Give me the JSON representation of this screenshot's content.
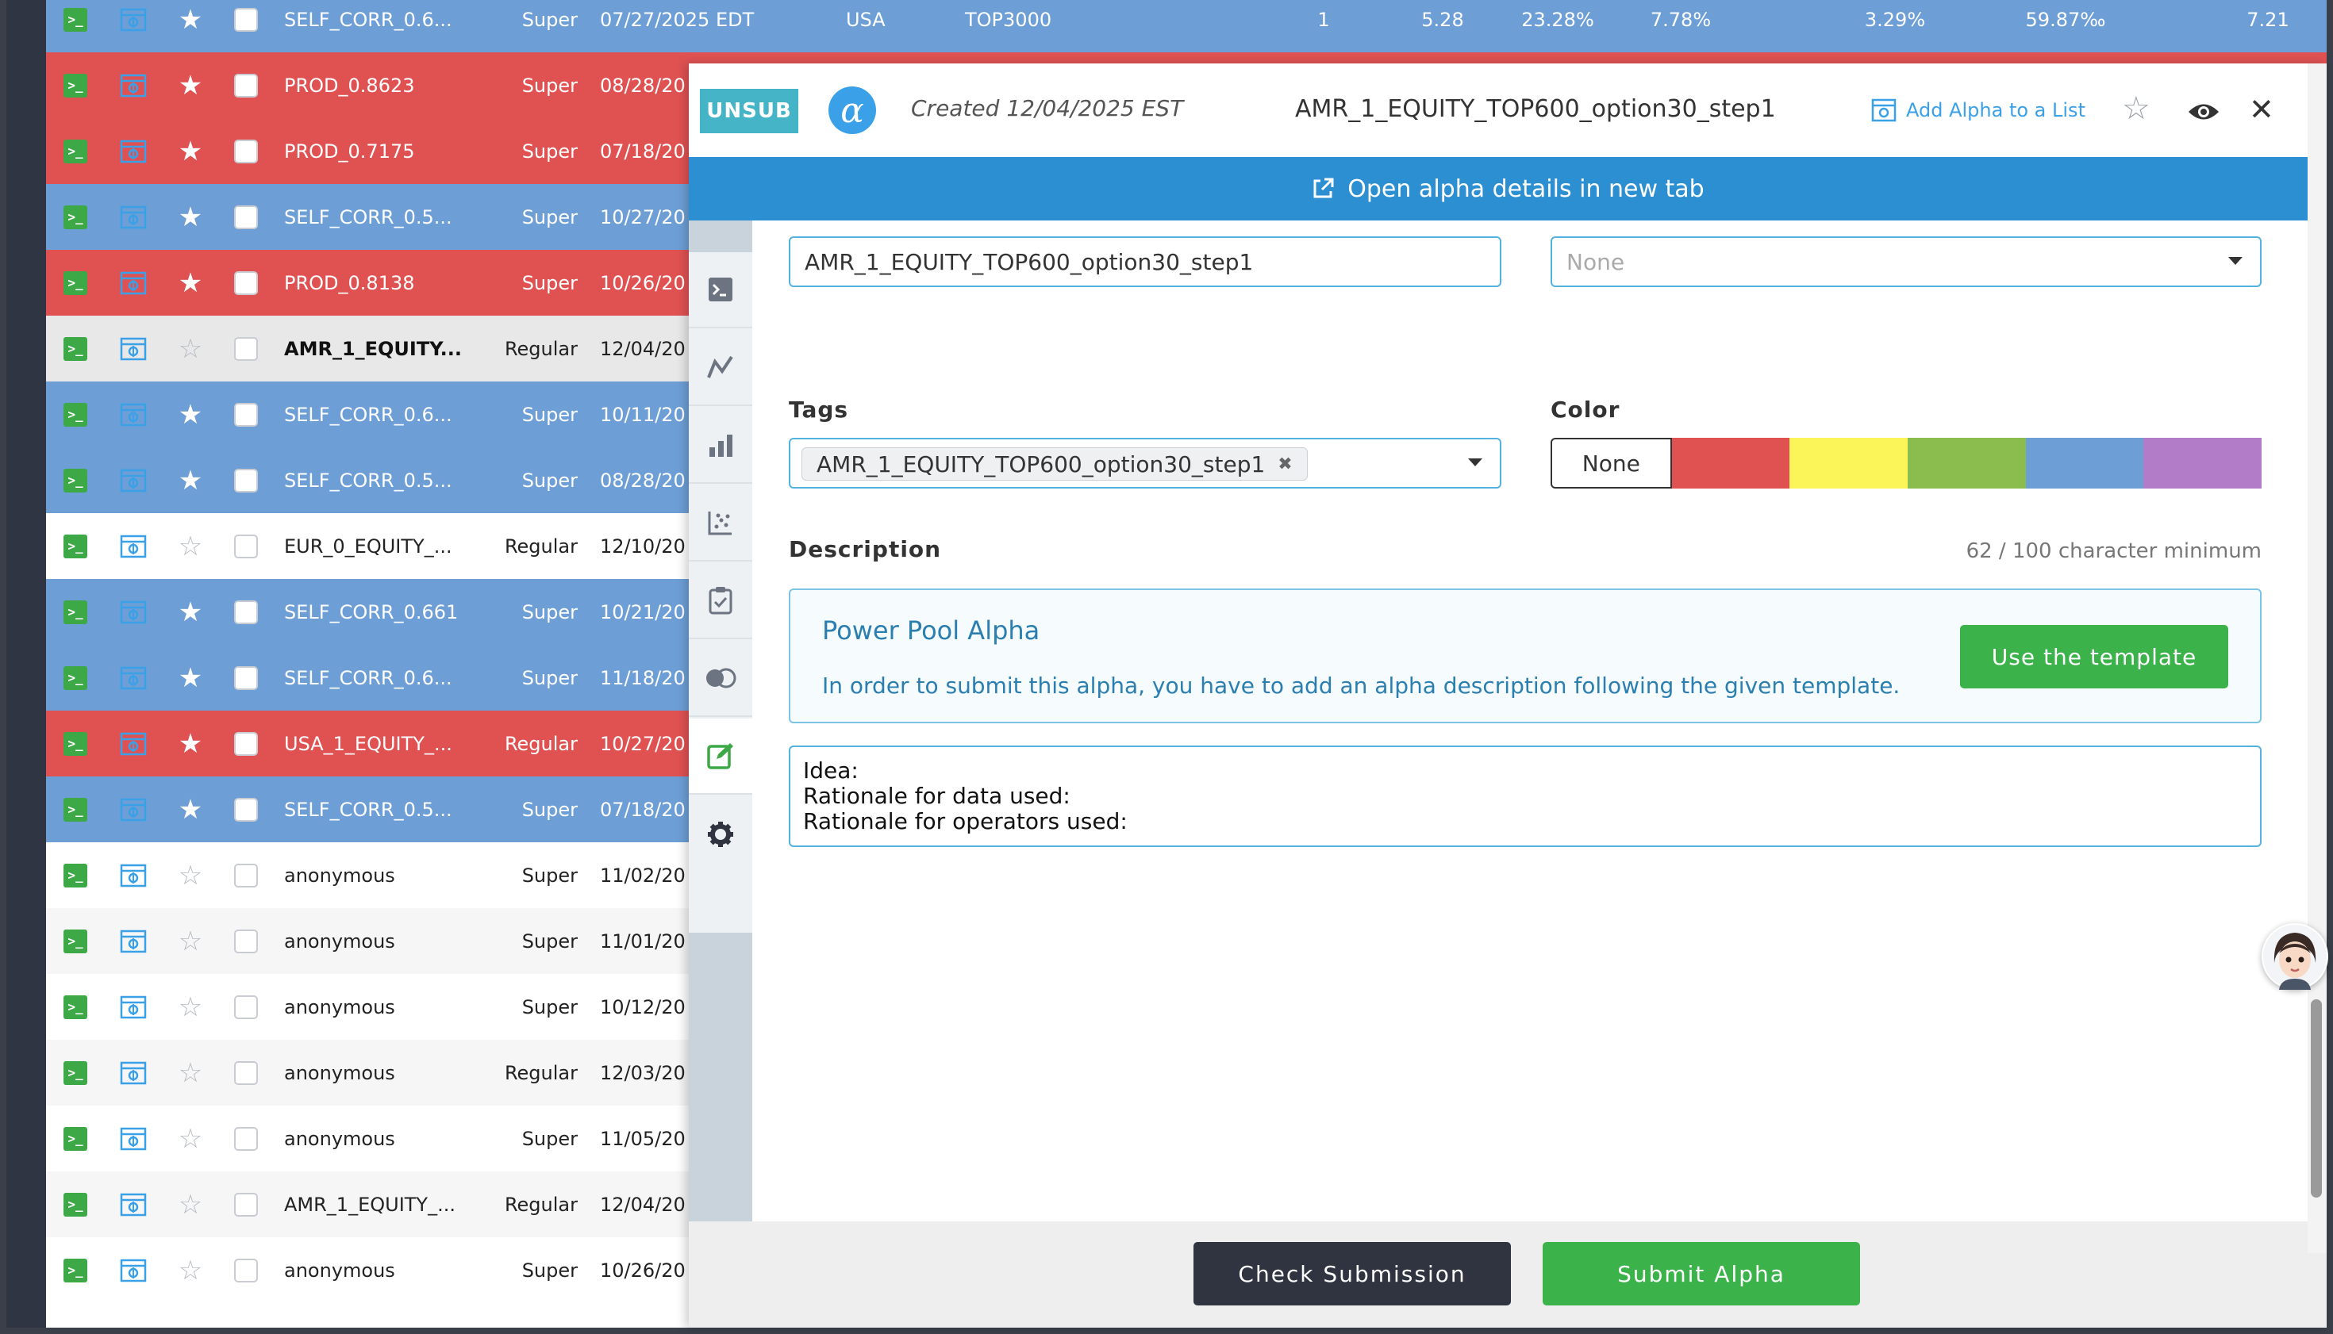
{
  "table": {
    "rows": [
      {
        "color": "blue",
        "starred": true,
        "name": "SELF_CORR_0.6...",
        "type": "Super",
        "date": "07/27/2025 EDT",
        "region": "USA",
        "universe": "TOP3000",
        "delay": "1",
        "sharpe": "5.28",
        "turnover": "23.28%",
        "fitness": "7.78%",
        "returns": "3.29%",
        "drawdown": "59.87‰",
        "margin": "7.21"
      },
      {
        "color": "red",
        "starred": true,
        "name": "PROD_0.8623",
        "type": "Super",
        "date": "08/28/20"
      },
      {
        "color": "red",
        "starred": true,
        "name": "PROD_0.7175",
        "type": "Super",
        "date": "07/18/20"
      },
      {
        "color": "blue",
        "starred": true,
        "name": "SELF_CORR_0.5...",
        "type": "Super",
        "date": "10/27/20"
      },
      {
        "color": "red",
        "starred": true,
        "name": "PROD_0.8138",
        "type": "Super",
        "date": "10/26/20"
      },
      {
        "color": "gray",
        "starred": false,
        "name": "AMR_1_EQUITY...",
        "type": "Regular",
        "date": "12/04/20"
      },
      {
        "color": "blue",
        "starred": true,
        "name": "SELF_CORR_0.6...",
        "type": "Super",
        "date": "10/11/20"
      },
      {
        "color": "blue",
        "starred": true,
        "name": "SELF_CORR_0.5...",
        "type": "Super",
        "date": "08/28/20"
      },
      {
        "color": "white",
        "starred": false,
        "name": "EUR_0_EQUITY_...",
        "type": "Regular",
        "date": "12/10/20"
      },
      {
        "color": "blue",
        "starred": true,
        "name": "SELF_CORR_0.661",
        "type": "Super",
        "date": "10/21/20"
      },
      {
        "color": "blue",
        "starred": true,
        "name": "SELF_CORR_0.6...",
        "type": "Super",
        "date": "11/18/20"
      },
      {
        "color": "red",
        "starred": true,
        "name": "USA_1_EQUITY_...",
        "type": "Regular",
        "date": "10/27/20"
      },
      {
        "color": "blue",
        "starred": true,
        "name": "SELF_CORR_0.5...",
        "type": "Super",
        "date": "07/18/20"
      },
      {
        "color": "white",
        "starred": false,
        "name": "anonymous",
        "type": "Super",
        "date": "11/02/20"
      },
      {
        "color": "light",
        "starred": false,
        "name": "anonymous",
        "type": "Super",
        "date": "11/01/20"
      },
      {
        "color": "white",
        "starred": false,
        "name": "anonymous",
        "type": "Super",
        "date": "10/12/20"
      },
      {
        "color": "light",
        "starred": false,
        "name": "anonymous",
        "type": "Regular",
        "date": "12/03/20"
      },
      {
        "color": "white",
        "starred": false,
        "name": "anonymous",
        "type": "Super",
        "date": "11/05/20"
      },
      {
        "color": "light",
        "starred": false,
        "name": "AMR_1_EQUITY_...",
        "type": "Regular",
        "date": "12/04/20"
      },
      {
        "color": "white",
        "starred": false,
        "name": "anonymous",
        "type": "Super",
        "date": "10/26/20"
      }
    ]
  },
  "modal": {
    "badge": "UNSUB",
    "logo_glyph": "α",
    "created": "Created 12/04/2025 EST",
    "title": "AMR_1_EQUITY_TOP600_option30_step1",
    "add_to_list": "Add Alpha to a List",
    "open_details": "Open alpha details in new tab",
    "name_value": "AMR_1_EQUITY_TOP600_option30_step1",
    "category_value": "None",
    "tags_label": "Tags",
    "tag_chip": "AMR_1_EQUITY_TOP600_option30_step1",
    "color_label": "Color",
    "color_none": "None",
    "color_swatches": [
      "#e05252",
      "#fbf55a",
      "#8bbd4e",
      "#6d9fd6",
      "#b27cc8"
    ],
    "description_label": "Description",
    "char_count": "62 / 100 character minimum",
    "template_title": "Power Pool Alpha",
    "template_text": "In order to submit this alpha, you have to add an alpha description following the given template.",
    "template_button": "Use the template",
    "description_lines": [
      "Idea:",
      "Rationale for data used:",
      "Rationale for operators used:"
    ],
    "check_button": "Check Submission",
    "submit_button": "Submit Alpha"
  },
  "colors": {
    "accent_blue": "#2c8fd1",
    "green": "#3cb34a",
    "row_red": "#e05252",
    "row_blue": "#6d9fd6"
  }
}
